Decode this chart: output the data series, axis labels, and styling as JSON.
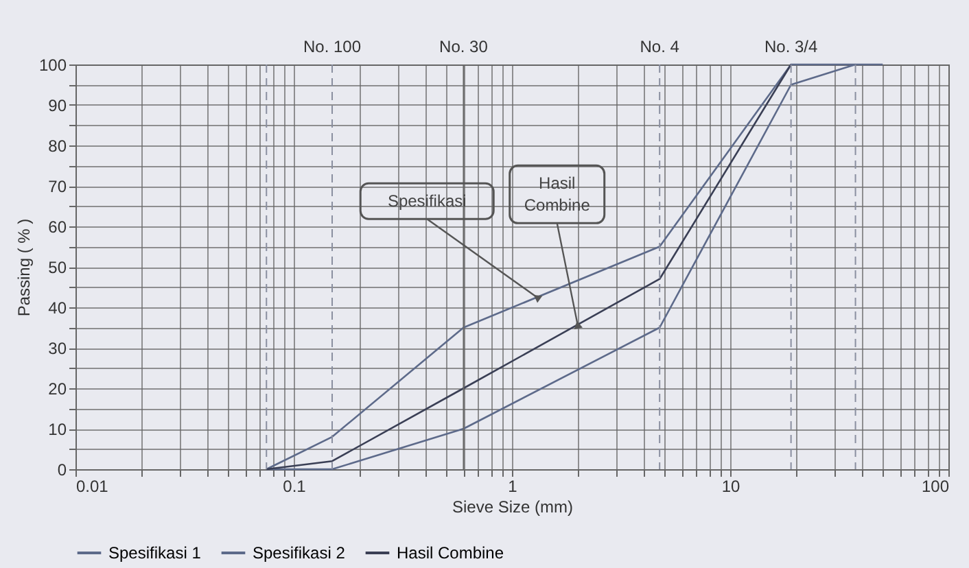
{
  "chart_data": {
    "type": "line",
    "xlabel": "Sieve Size (mm)",
    "ylabel": "Passing ( % )",
    "log": "x",
    "grid": true,
    "legend": "bottom",
    "marker": "none",
    "line_style": "solid",
    "xlim": [
      0.01,
      100
    ],
    "xticks": [
      0.01,
      {
        "value": 0.02,
        "label": null
      },
      {
        "value": 0.03,
        "label": null
      },
      {
        "value": 0.04,
        "label": null
      },
      {
        "value": 0.05,
        "label": null
      },
      {
        "value": 0.06,
        "label": null
      },
      {
        "value": 0.07,
        "label": null
      },
      {
        "value": 0.08,
        "label": null
      },
      {
        "value": 0.09,
        "label": null
      },
      0.1,
      {
        "value": 0.2,
        "label": null
      },
      {
        "value": 0.3,
        "label": null
      },
      {
        "value": 0.4,
        "label": null
      },
      {
        "value": 0.5,
        "label": null
      },
      {
        "value": 0.6,
        "label": null
      },
      {
        "value": 0.7,
        "label": null
      },
      {
        "value": 0.8,
        "label": null
      },
      {
        "value": 0.9,
        "label": null
      },
      1,
      {
        "value": 2,
        "label": null
      },
      {
        "value": 3,
        "label": null
      },
      {
        "value": 4,
        "label": null
      },
      {
        "value": 5,
        "label": null
      },
      {
        "value": 6,
        "label": null
      },
      {
        "value": 7,
        "label": null
      },
      {
        "value": 8,
        "label": null
      },
      {
        "value": 9,
        "label": null
      },
      10,
      {
        "value": 20,
        "label": null
      },
      {
        "value": 30,
        "label": null
      },
      {
        "value": 40,
        "label": null
      },
      {
        "value": 50,
        "label": null
      },
      {
        "value": 60,
        "label": null
      },
      {
        "value": 70,
        "label": null
      },
      {
        "value": 80,
        "label": null
      },
      {
        "value": 90,
        "label": null
      },
      100
    ],
    "ylim": [
      0,
      100
    ],
    "yticks": [
      0,
      {
        "value": 5,
        "label": null
      },
      10,
      {
        "value": 15,
        "label": null
      },
      20,
      {
        "value": 25,
        "label": null
      },
      30,
      {
        "value": 35,
        "label": null
      },
      40,
      {
        "value": 45,
        "label": null
      },
      50,
      {
        "value": 55,
        "label": null
      },
      60,
      {
        "value": 65,
        "label": null
      },
      70,
      {
        "value": 75,
        "label": null
      },
      80,
      {
        "value": 85,
        "label": null
      },
      90,
      {
        "value": 95,
        "label": null
      },
      100
    ],
    "ref_lines": [
      {
        "axis": "x",
        "value": 0.075,
        "line_style": "dashed",
        "color": "#8a8fa0"
      },
      {
        "axis": "x",
        "value": 0.15,
        "label": "No. 100",
        "line_style": "dashed",
        "color": "#8a8fa0"
      },
      {
        "axis": "x",
        "value": 0.6,
        "label": "No. 30",
        "color": "#666666"
      },
      {
        "axis": "x",
        "value": 4.75,
        "label": "No. 4",
        "line_style": "dashed",
        "color": "#8a8fa0"
      },
      {
        "axis": "x",
        "value": 19,
        "label": "No. 3/4",
        "line_style": "dashed",
        "color": "#8a8fa0"
      },
      {
        "axis": "x",
        "value": 37.5,
        "line_style": "dashed",
        "color": "#8a8fa0"
      }
    ],
    "series": [
      {
        "name": "Spesifikasi 1",
        "color": "#5d6a8a",
        "x": [
          0.075,
          0.15,
          0.6,
          4.75,
          19,
          37.5,
          50
        ],
        "values": [
          0,
          8,
          35,
          55,
          100,
          100,
          100
        ]
      },
      {
        "name": "Spesifikasi 2",
        "color": "#5d6a8a",
        "x": [
          0.075,
          0.15,
          0.6,
          4.75,
          19,
          37.5
        ],
        "values": [
          0,
          0,
          10,
          35,
          95,
          100
        ]
      },
      {
        "name": "Hasil Combine",
        "color": "#3a3f55",
        "x": [
          0.075,
          0.15,
          0.6,
          4.75,
          19
        ],
        "values": [
          0,
          2,
          20,
          47,
          100
        ]
      }
    ],
    "annotations": [
      {
        "text": "Spesifikasi",
        "x": 1.3,
        "y": 42.5
      },
      {
        "text": "Hasil Combine",
        "x": 2,
        "y": 35.7
      }
    ]
  }
}
